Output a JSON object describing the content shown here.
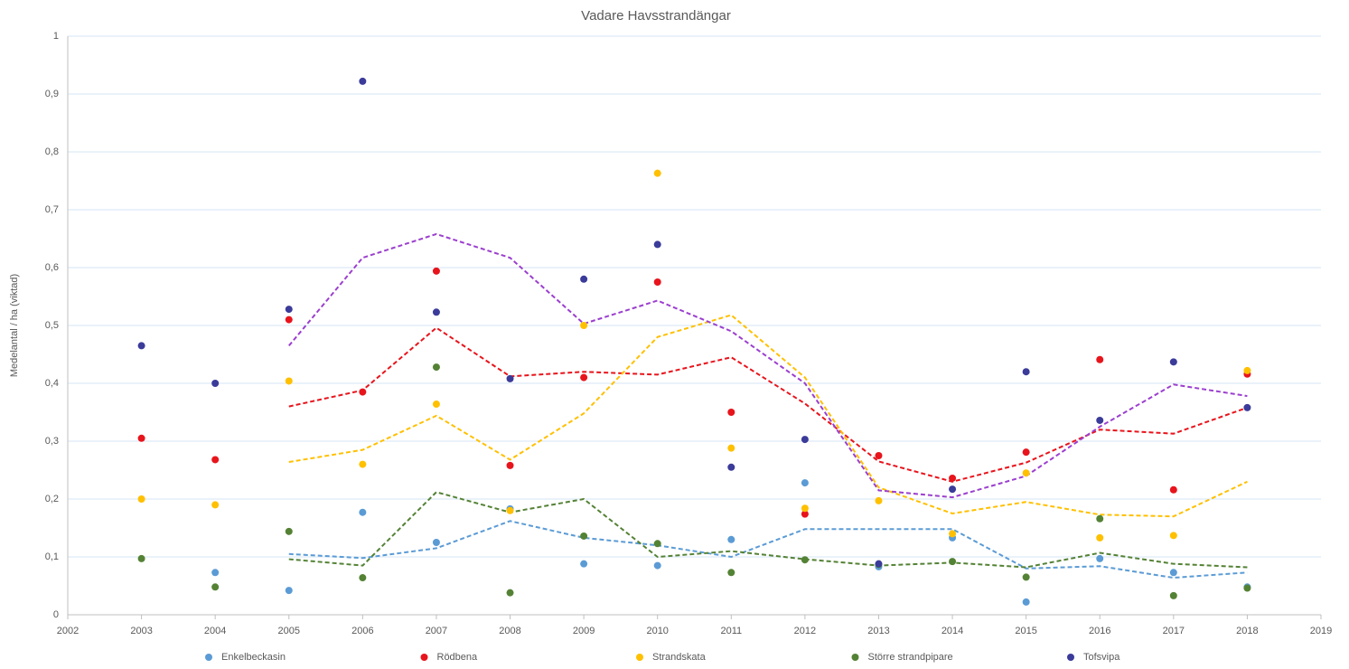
{
  "chart_data": {
    "type": "scatter",
    "title": "Vadare Havsstrandängar",
    "y_label": "Medelantal / ha (viktad)",
    "x": [
      2003,
      2004,
      2005,
      2006,
      2007,
      2008,
      2009,
      2010,
      2011,
      2012,
      2013,
      2014,
      2015,
      2016,
      2017,
      2018
    ],
    "xlim": [
      2002,
      2019
    ],
    "xticks": [
      2002,
      2003,
      2004,
      2005,
      2006,
      2007,
      2008,
      2009,
      2010,
      2011,
      2012,
      2013,
      2014,
      2015,
      2016,
      2017,
      2018,
      2019
    ],
    "ylim": [
      0,
      1
    ],
    "yticks": [
      0,
      {
        "value": 0.1,
        "label": "0,1"
      },
      {
        "value": 0.2,
        "label": "0,2"
      },
      {
        "value": 0.3,
        "label": "0,3"
      },
      {
        "value": 0.4,
        "label": "0,4"
      },
      {
        "value": 0.5,
        "label": "0,5"
      },
      {
        "value": 0.6,
        "label": "0,6"
      },
      {
        "value": 0.7,
        "label": "0,7"
      },
      {
        "value": 0.8,
        "label": "0,8"
      },
      {
        "value": 0.9,
        "label": "0,9"
      },
      1
    ],
    "grid": true,
    "legend": "bottom",
    "series": [
      {
        "name": "Enkelbeckasin",
        "color": "#5b9bd5",
        "trend_color": "#5b9bd5",
        "values": [
          null,
          0.073,
          0.042,
          0.177,
          0.125,
          0.183,
          0.088,
          0.085,
          0.13,
          0.228,
          0.083,
          0.133,
          0.022,
          0.097,
          0.073,
          0.048
        ],
        "trend": [
          null,
          null,
          0.105,
          0.098,
          0.115,
          0.162,
          0.133,
          0.12,
          0.1,
          0.148,
          0.148,
          0.148,
          0.08,
          0.084,
          0.064,
          0.073
        ]
      },
      {
        "name": "Rödbena",
        "color": "#e8141c",
        "trend_color": "#e8141c",
        "values": [
          0.305,
          0.268,
          0.51,
          0.385,
          0.594,
          0.258,
          0.41,
          0.575,
          0.35,
          0.174,
          0.275,
          0.236,
          0.281,
          0.441,
          0.216,
          0.416
        ],
        "trend": [
          null,
          null,
          0.36,
          0.388,
          0.496,
          0.412,
          0.42,
          0.415,
          0.445,
          0.365,
          0.265,
          0.23,
          0.263,
          0.32,
          0.313,
          0.358
        ]
      },
      {
        "name": "Strandskata",
        "color": "#ffc000",
        "trend_color": "#ffc000",
        "values": [
          0.2,
          0.19,
          0.404,
          0.26,
          0.364,
          0.18,
          0.5,
          0.763,
          0.288,
          0.184,
          0.197,
          0.14,
          0.245,
          0.133,
          0.137,
          0.422
        ],
        "trend": [
          null,
          null,
          0.264,
          0.285,
          0.344,
          0.268,
          0.348,
          0.48,
          0.518,
          0.41,
          0.22,
          0.175,
          0.195,
          0.173,
          0.17,
          0.23
        ]
      },
      {
        "name": "Större strandpipare",
        "color": "#548235",
        "trend_color": "#548235",
        "values": [
          0.097,
          0.048,
          0.144,
          0.064,
          0.428,
          0.038,
          0.136,
          0.123,
          0.073,
          0.095,
          0.087,
          0.092,
          0.065,
          0.166,
          0.033,
          0.046
        ],
        "trend": [
          null,
          null,
          0.096,
          0.085,
          0.212,
          0.177,
          0.2,
          0.1,
          0.11,
          0.096,
          0.085,
          0.09,
          0.082,
          0.107,
          0.088,
          0.082
        ]
      },
      {
        "name": "Tofsvipa",
        "color": "#3b3b9a",
        "trend_color": "#9b3fcf",
        "values": [
          0.465,
          0.4,
          0.528,
          0.922,
          0.523,
          0.408,
          0.58,
          0.64,
          0.255,
          0.303,
          0.088,
          0.217,
          0.42,
          0.336,
          0.437,
          0.358
        ],
        "trend": [
          null,
          null,
          0.465,
          0.617,
          0.658,
          0.617,
          0.503,
          0.543,
          0.49,
          0.4,
          0.215,
          0.203,
          0.24,
          0.325,
          0.398,
          0.378
        ]
      }
    ]
  }
}
